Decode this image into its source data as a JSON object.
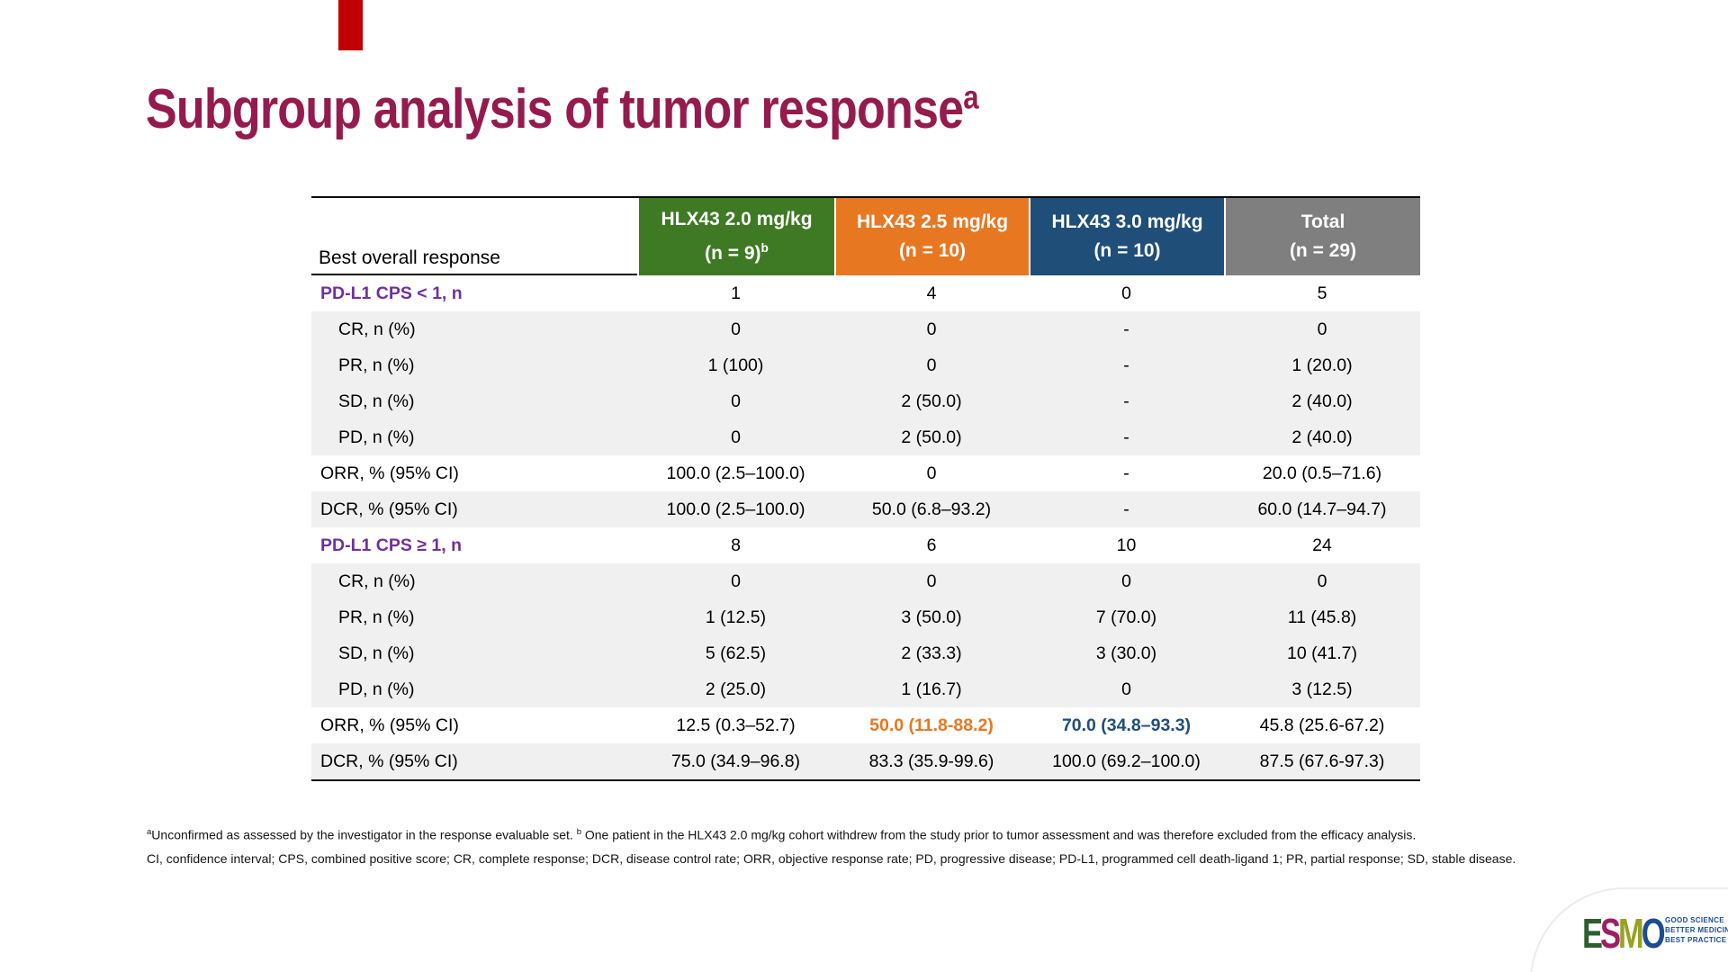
{
  "slide": {
    "title": "Subgroup analysis of tumor response",
    "title_superscript": "a",
    "accent_bar_color": "#C00000",
    "title_color": "#951B4E"
  },
  "table": {
    "corner_label": "Best overall response",
    "columns": [
      {
        "name": "HLX43 2.0 mg/kg",
        "n": "(n = 9)",
        "n_superscript": "b",
        "color": "#3E7A23"
      },
      {
        "name": "HLX43 2.5 mg/kg",
        "n": "(n = 10)",
        "color": "#E87722"
      },
      {
        "name": "HLX43 3.0 mg/kg",
        "n": "(n = 10)",
        "color": "#1F4E79"
      },
      {
        "name": "Total",
        "n": "(n = 29)",
        "color": "#7F7F7F"
      }
    ],
    "rows": [
      {
        "label": "PD-L1 CPS < 1, n",
        "style": "section",
        "shaded": false,
        "values": [
          "1",
          "4",
          "0",
          "5"
        ]
      },
      {
        "label": "CR, n (%)",
        "style": "sub",
        "shaded": true,
        "values": [
          "0",
          "0",
          "-",
          "0"
        ]
      },
      {
        "label": "PR, n (%)",
        "style": "sub",
        "shaded": true,
        "values": [
          "1 (100)",
          "0",
          "-",
          "1 (20.0)"
        ]
      },
      {
        "label": "SD, n (%)",
        "style": "sub",
        "shaded": true,
        "values": [
          "0",
          "2 (50.0)",
          "-",
          "2 (40.0)"
        ]
      },
      {
        "label": "PD, n (%)",
        "style": "sub",
        "shaded": true,
        "values": [
          "0",
          "2 (50.0)",
          "-",
          "2 (40.0)"
        ]
      },
      {
        "label": "ORR, % (95% CI)",
        "style": "stat",
        "shaded": false,
        "values": [
          "100.0 (2.5–100.0)",
          "0",
          "-",
          "20.0 (0.5–71.6)"
        ]
      },
      {
        "label": "DCR, % (95% CI)",
        "style": "stat",
        "shaded": true,
        "values": [
          "100.0 (2.5–100.0)",
          "50.0 (6.8–93.2)",
          "-",
          "60.0 (14.7–94.7)"
        ]
      },
      {
        "label": "PD-L1 CPS ≥ 1, n",
        "style": "section",
        "shaded": false,
        "values": [
          "8",
          "6",
          "10",
          "24"
        ]
      },
      {
        "label": "CR, n (%)",
        "style": "sub",
        "shaded": true,
        "values": [
          "0",
          "0",
          "0",
          "0"
        ]
      },
      {
        "label": "PR, n (%)",
        "style": "sub",
        "shaded": true,
        "values": [
          "1 (12.5)",
          "3 (50.0)",
          "7 (70.0)",
          "11 (45.8)"
        ]
      },
      {
        "label": "SD, n (%)",
        "style": "sub",
        "shaded": true,
        "values": [
          "5 (62.5)",
          "2 (33.3)",
          "3 (30.0)",
          "10 (41.7)"
        ]
      },
      {
        "label": "PD, n (%)",
        "style": "sub",
        "shaded": true,
        "values": [
          "2 (25.0)",
          "1 (16.7)",
          "0",
          "3 (12.5)"
        ]
      },
      {
        "label": "ORR, % (95% CI)",
        "style": "stat",
        "shaded": false,
        "values": [
          "12.5 (0.3–52.7)",
          {
            "text": "50.0 (11.8-88.2)",
            "emphasis": "orange"
          },
          {
            "text": "70.0 (34.8–93.3)",
            "emphasis": "blue"
          },
          "45.8 (25.6-67.2)"
        ]
      },
      {
        "label": "DCR, % (95% CI)",
        "style": "stat",
        "shaded": true,
        "values": [
          "75.0 (34.9–96.8)",
          "83.3 (35.9-99.6)",
          "100.0 (69.2–100.0)",
          "87.5 (67.6-97.3)"
        ]
      }
    ],
    "emphasis_colors": {
      "orange": "#E87722",
      "blue": "#1F4E79"
    },
    "section_label_color": "#7030A0",
    "shaded_row_color": "#F0F0F0"
  },
  "footnotes": {
    "line1_sup_a": "a",
    "line1_part1": "Unconfirmed as assessed by the investigator in the response evaluable set. ",
    "line1_sup_b": "b",
    "line1_part2": " One patient in the HLX43 2.0 mg/kg cohort withdrew from the study prior to tumor assessment and was therefore excluded from the efficacy analysis.",
    "line2": "CI, confidence interval; CPS, combined positive score; CR, complete response; DCR, disease control rate; ORR, objective response rate; PD, progressive disease; PD-L1, programmed cell death-ligand 1; PR, partial response; SD, stable disease."
  },
  "logo": {
    "letters": [
      {
        "char": "E",
        "color": "#2F5E2E"
      },
      {
        "char": "S",
        "color": "#A01E62"
      },
      {
        "char": "M",
        "color": "#95A224"
      },
      {
        "char": "O",
        "color": "#1D4C8F"
      }
    ],
    "tagline": [
      "GOOD SCIENCE",
      "BETTER MEDICINE",
      "BEST PRACTICE"
    ],
    "tagline_color": "#1D4C8F"
  }
}
